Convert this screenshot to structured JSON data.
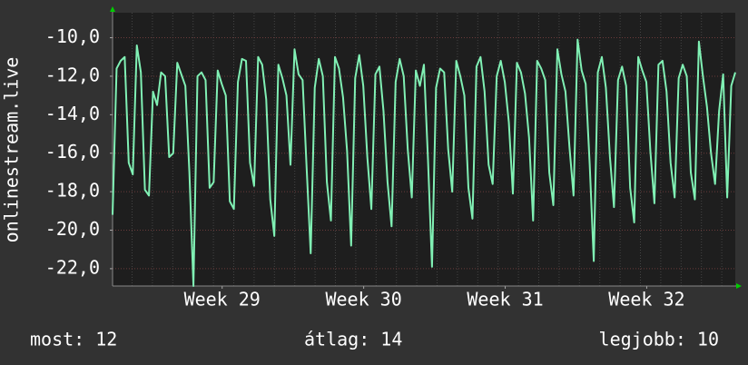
{
  "chart_data": {
    "type": "line",
    "y_label": "onlinestream.live",
    "ylim": [
      -22.9,
      -8.7
    ],
    "yticks": [
      {
        "value": -10,
        "label": "-10,0"
      },
      {
        "value": -12,
        "label": "-12,0"
      },
      {
        "value": -14,
        "label": "-14,0"
      },
      {
        "value": -16,
        "label": "-16,0"
      },
      {
        "value": -18,
        "label": "-18,0"
      },
      {
        "value": -20,
        "label": "-20,0"
      },
      {
        "value": -22,
        "label": "-22,0"
      }
    ],
    "xlim": [
      0,
      154
    ],
    "xticks": [
      {
        "value": 27.1,
        "label": "Week 29"
      },
      {
        "value": 62.1,
        "label": "Week 30"
      },
      {
        "value": 97.1,
        "label": "Week 31"
      },
      {
        "value": 132.1,
        "label": "Week 32"
      }
    ],
    "grid": true,
    "color": "#80f0b4",
    "values": [
      -19.2,
      -11.6,
      -11.2,
      -11.0,
      -16.5,
      -17.1,
      -10.4,
      -11.8,
      -17.9,
      -18.2,
      -12.8,
      -13.5,
      -11.8,
      -12.0,
      -16.2,
      -16.0,
      -11.3,
      -11.9,
      -12.5,
      -17.0,
      -22.9,
      -12.0,
      -11.8,
      -12.2,
      -17.8,
      -17.5,
      -11.7,
      -12.4,
      -13.0,
      -18.5,
      -18.9,
      -12.3,
      -11.1,
      -11.2,
      -16.5,
      -17.7,
      -11.0,
      -11.4,
      -13.2,
      -18.4,
      -20.3,
      -11.4,
      -12.1,
      -13.0,
      -16.6,
      -10.6,
      -11.9,
      -12.2,
      -16.8,
      -21.2,
      -12.6,
      -11.1,
      -12.0,
      -17.5,
      -19.5,
      -11.0,
      -11.6,
      -13.1,
      -15.9,
      -20.8,
      -12.1,
      -10.9,
      -12.5,
      -16.2,
      -18.9,
      -11.9,
      -11.5,
      -13.8,
      -17.5,
      -19.8,
      -12.3,
      -11.1,
      -12.0,
      -15.8,
      -18.3,
      -11.7,
      -12.5,
      -11.4,
      -16.3,
      -21.9,
      -12.6,
      -11.6,
      -11.8,
      -15.8,
      -18.0,
      -11.2,
      -12.0,
      -13.0,
      -17.8,
      -19.4,
      -11.5,
      -11.0,
      -12.8,
      -16.6,
      -17.6,
      -12.0,
      -11.2,
      -12.3,
      -14.4,
      -18.1,
      -11.3,
      -11.8,
      -12.9,
      -15.2,
      -19.5,
      -11.2,
      -11.6,
      -12.2,
      -17.0,
      -18.7,
      -10.6,
      -11.9,
      -12.8,
      -15.7,
      -18.2,
      -10.1,
      -11.7,
      -12.4,
      -16.6,
      -21.6,
      -11.8,
      -11.0,
      -12.6,
      -16.2,
      -18.8,
      -12.2,
      -11.5,
      -12.5,
      -17.8,
      -19.6,
      -11.0,
      -11.7,
      -12.3,
      -15.9,
      -18.6,
      -11.4,
      -11.2,
      -12.8,
      -16.5,
      -18.3,
      -12.1,
      -11.4,
      -12.0,
      -17.0,
      -18.4,
      -10.2,
      -12.0,
      -13.6,
      -16.0,
      -17.6,
      -13.8,
      -11.9,
      -18.3,
      -12.5,
      -11.8
    ],
    "footer": {
      "now": "most: 12",
      "average": "átlag: 14",
      "best": "legjobb: 10"
    }
  }
}
